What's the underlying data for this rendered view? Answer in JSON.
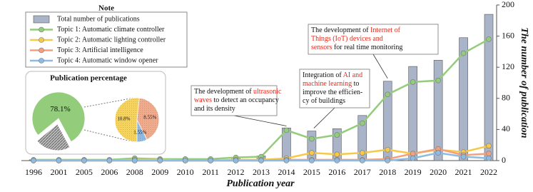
{
  "chart_data": [
    {
      "type": "bar",
      "xlabel": "Publication year",
      "ylabel": "The number of publication",
      "categories": [
        "1996",
        "2001",
        "2005",
        "2006",
        "2008",
        "2009",
        "2010",
        "2011",
        "2012",
        "2013",
        "2014",
        "2015",
        "2016",
        "2017",
        "2018",
        "2019",
        "2020",
        "2021",
        "2022"
      ],
      "ylim": [
        0,
        200
      ],
      "yticks": [
        0,
        40,
        80,
        120,
        160,
        200
      ],
      "legend_title": "Note",
      "series": [
        {
          "name": "Total number of  publications",
          "type": "bar",
          "color": "#aab4c9",
          "values": [
            1,
            1,
            1,
            1,
            3,
            2,
            2,
            2,
            4,
            6,
            42,
            38,
            41,
            58,
            102,
            121,
            129,
            158,
            188
          ]
        },
        {
          "name": "Topic 1: Automatic climate controller",
          "type": "line",
          "color": "#93cc7a",
          "values": [
            1,
            1,
            1,
            1,
            3,
            2,
            2,
            2,
            4,
            5,
            39,
            28,
            33,
            48,
            85,
            101,
            103,
            138,
            156
          ]
        },
        {
          "name": "Topic 2: Automatic lighting controller",
          "type": "line",
          "color": "#f6c94a",
          "values": [
            0,
            0,
            0,
            0,
            1,
            1,
            0,
            0,
            1,
            1,
            3,
            10,
            8,
            10,
            14,
            9,
            14,
            11,
            19
          ]
        },
        {
          "name": "Topic 3: Artificial intelligence",
          "type": "line",
          "color": "#f2a17c",
          "values": [
            0,
            0,
            0,
            0,
            0,
            0,
            0,
            0,
            0,
            0,
            1,
            1,
            1,
            1,
            2,
            9,
            15,
            7,
            9
          ]
        },
        {
          "name": "Topic 4: Automatic window opener",
          "type": "line",
          "color": "#8fbbe2",
          "values": [
            0,
            0,
            0,
            0,
            0,
            0,
            0,
            0,
            0,
            0,
            0,
            0,
            0,
            0,
            0,
            3,
            10,
            5,
            3
          ]
        }
      ],
      "annotations": [
        {
          "lines": [
            [
              {
                "text": "The development of "
              },
              {
                "text": "ultrasonic",
                "color": "#e32b1e"
              }
            ],
            [
              {
                "text": "waves",
                "color": "#e32b1e"
              },
              {
                "text": " to detect an occupancy"
              }
            ],
            [
              {
                "text": "and its density"
              }
            ]
          ]
        },
        {
          "lines": [
            [
              {
                "text": "Integration of "
              },
              {
                "text": "AI and",
                "color": "#e32b1e"
              }
            ],
            [
              {
                "text": "machine learning",
                "color": "#e32b1e"
              },
              {
                "text": " to"
              }
            ],
            [
              {
                "text": "improve the efficien-"
              }
            ],
            [
              {
                "text": "cy of buildings"
              }
            ]
          ]
        },
        {
          "lines": [
            [
              {
                "text": "The development of "
              },
              {
                "text": "Internet of",
                "color": "#e32b1e"
              }
            ],
            [
              {
                "text": "Things (IoT) devices and",
                "color": "#e32b1e"
              }
            ],
            [
              {
                "text": "sensors",
                "color": "#e32b1e"
              },
              {
                "text": " for real time monitoring"
              }
            ]
          ]
        }
      ]
    },
    {
      "type": "pie",
      "title": "Publication percentage",
      "pies": [
        {
          "values": [
            78.1,
            21.9
          ],
          "value_labels": [
            "78.1%",
            null
          ],
          "colors": [
            "#93cc7a",
            "#9a9a9a"
          ]
        },
        {
          "values": [
            10.8,
            8.55,
            1.55
          ],
          "value_labels": [
            "10.8%",
            "8.55%",
            "1.55%"
          ],
          "colors": [
            "#f6d35c",
            "#f0ab8c",
            "#8fbbe2"
          ]
        }
      ]
    }
  ]
}
